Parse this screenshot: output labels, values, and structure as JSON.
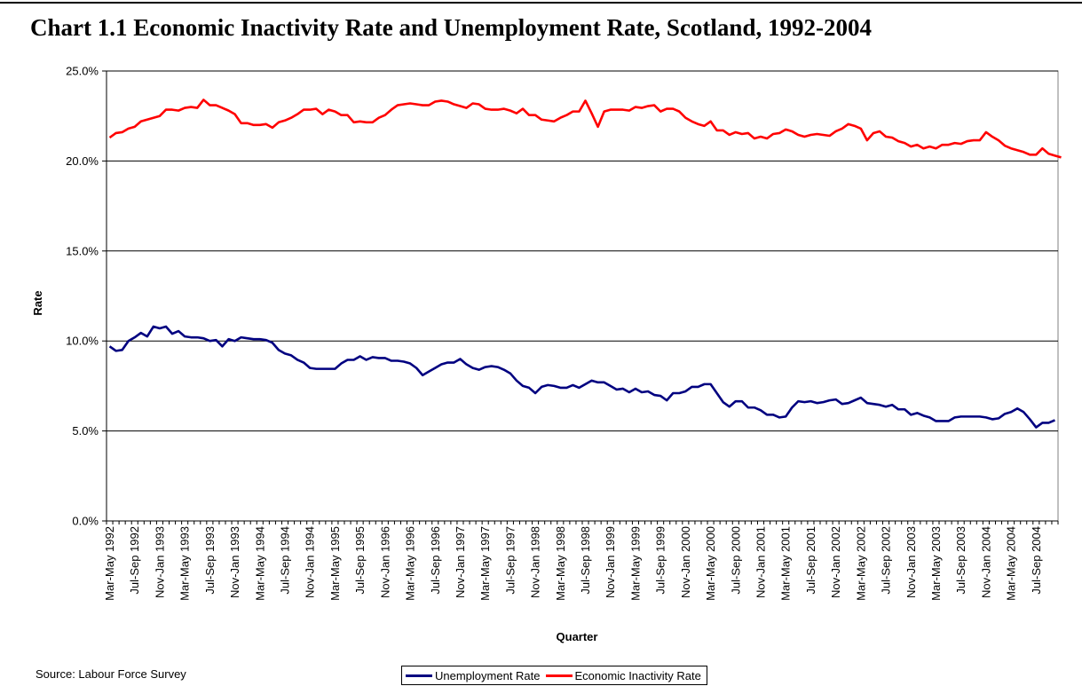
{
  "page": {
    "title": "Chart 1.1 Economic Inactivity Rate and Unemployment Rate, Scotland, 1992-2004",
    "source": "Source: Labour Force Survey"
  },
  "chart_data": {
    "type": "line",
    "title": "Chart 1.1 Economic Inactivity Rate and Unemployment Rate, Scotland, 1992-2004",
    "xlabel": "Quarter",
    "ylabel": "Rate",
    "ylim": [
      0,
      25
    ],
    "yticks": [
      "0.0%",
      "5.0%",
      "10.0%",
      "15.0%",
      "20.0%",
      "25.0%"
    ],
    "grid": "horizontal",
    "legend_position": "bottom",
    "x_tick_labels": [
      "Mar-May 1992",
      "Jul-Sep 1992",
      "Nov-Jan 1993",
      "Mar-May 1993",
      "Jul-Sep 1993",
      "Nov-Jan 1993",
      "Mar-May 1994",
      "Jul-Sep 1994",
      "Nov-Jan 1994",
      "Mar-May 1995",
      "Jul-Sep 1995",
      "Nov-Jan 1996",
      "Mar-May 1996",
      "Jul-Sep 1996",
      "Nov-Jan 1997",
      "Mar-May 1997",
      "Jul-Sep 1997",
      "Nov-Jan 1998",
      "Mar-May 1998",
      "Jul-Sep 1998",
      "Nov-Jan 1999",
      "Mar-May 1999",
      "Jul-Sep 1999",
      "Nov-Jan 2000",
      "Mar-May 2000",
      "Jul-Sep 2000",
      "Nov-Jan 2001",
      "Mar-May 2001",
      "Jul-Sep 2001",
      "Nov-Jan 2002",
      "Mar-May 2002",
      "Jul-Sep 2002",
      "Nov-Jan 2003",
      "Mar-May 2003",
      "Jul-Sep 2003",
      "Nov-Jan 2004",
      "Mar-May 2004",
      "Jul-Sep 2004"
    ],
    "series": [
      {
        "name": "Unemployment Rate",
        "color": "#000080",
        "values": [
          9.7,
          9.45,
          9.5,
          10.0,
          10.2,
          10.45,
          10.25,
          10.8,
          10.7,
          10.8,
          10.4,
          10.55,
          10.25,
          10.2,
          10.2,
          10.15,
          10.0,
          10.05,
          9.7,
          10.1,
          10.0,
          10.2,
          10.15,
          10.1,
          10.1,
          10.05,
          9.9,
          9.5,
          9.3,
          9.2,
          8.95,
          8.8,
          8.5,
          8.45,
          8.45,
          8.45,
          8.45,
          8.75,
          8.95,
          8.95,
          9.15,
          8.95,
          9.1,
          9.05,
          9.05,
          8.9,
          8.9,
          8.85,
          8.75,
          8.5,
          8.1,
          8.3,
          8.5,
          8.7,
          8.8,
          8.8,
          9.0,
          8.7,
          8.5,
          8.4,
          8.55,
          8.6,
          8.55,
          8.4,
          8.2,
          7.8,
          7.5,
          7.4,
          7.1,
          7.45,
          7.55,
          7.5,
          7.4,
          7.4,
          7.55,
          7.4,
          7.6,
          7.8,
          7.7,
          7.7,
          7.5,
          7.3,
          7.35,
          7.15,
          7.35,
          7.15,
          7.2,
          7.0,
          6.95,
          6.7,
          7.1,
          7.1,
          7.2,
          7.45,
          7.45,
          7.6,
          7.6,
          7.1,
          6.6,
          6.35,
          6.65,
          6.65,
          6.3,
          6.3,
          6.15,
          5.9,
          5.9,
          5.75,
          5.8,
          6.3,
          6.65,
          6.6,
          6.65,
          6.55,
          6.6,
          6.7,
          6.75,
          6.5,
          6.55,
          6.7,
          6.85,
          6.55,
          6.5,
          6.45,
          6.35,
          6.45,
          6.2,
          6.2,
          5.9,
          6.0,
          5.85,
          5.75,
          5.55,
          5.55,
          5.55,
          5.75,
          5.8,
          5.8,
          5.8,
          5.8,
          5.75,
          5.65,
          5.7,
          5.95,
          6.05,
          6.25,
          6.05,
          5.65,
          5.2,
          5.45,
          5.45,
          5.6
        ]
      },
      {
        "name": "Economic Inactivity Rate",
        "color": "#FF0000",
        "values": [
          21.3,
          21.55,
          21.6,
          21.8,
          21.9,
          22.2,
          22.3,
          22.4,
          22.5,
          22.85,
          22.85,
          22.8,
          22.95,
          23.0,
          22.95,
          23.4,
          23.1,
          23.1,
          22.95,
          22.8,
          22.6,
          22.1,
          22.1,
          22.0,
          22.0,
          22.05,
          21.85,
          22.15,
          22.25,
          22.4,
          22.6,
          22.85,
          22.85,
          22.9,
          22.6,
          22.85,
          22.75,
          22.55,
          22.55,
          22.15,
          22.2,
          22.15,
          22.15,
          22.4,
          22.55,
          22.85,
          23.1,
          23.15,
          23.2,
          23.15,
          23.1,
          23.1,
          23.3,
          23.35,
          23.3,
          23.15,
          23.05,
          22.95,
          23.2,
          23.15,
          22.9,
          22.85,
          22.85,
          22.9,
          22.8,
          22.65,
          22.9,
          22.55,
          22.55,
          22.3,
          22.25,
          22.2,
          22.4,
          22.55,
          22.75,
          22.75,
          23.35,
          22.65,
          21.9,
          22.75,
          22.85,
          22.85,
          22.85,
          22.8,
          23.0,
          22.95,
          23.05,
          23.1,
          22.75,
          22.9,
          22.9,
          22.75,
          22.4,
          22.2,
          22.05,
          21.95,
          22.2,
          21.7,
          21.7,
          21.45,
          21.6,
          21.5,
          21.55,
          21.25,
          21.35,
          21.25,
          21.5,
          21.55,
          21.75,
          21.65,
          21.45,
          21.35,
          21.45,
          21.5,
          21.45,
          21.4,
          21.65,
          21.8,
          22.05,
          21.95,
          21.8,
          21.15,
          21.55,
          21.65,
          21.35,
          21.3,
          21.1,
          21.0,
          20.8,
          20.9,
          20.7,
          20.8,
          20.7,
          20.9,
          20.9,
          21.0,
          20.95,
          21.1,
          21.15,
          21.15,
          21.6,
          21.35,
          21.15,
          20.85,
          20.7,
          20.6,
          20.5,
          20.35,
          20.35,
          20.7,
          20.4,
          20.3,
          20.2
        ]
      }
    ]
  }
}
